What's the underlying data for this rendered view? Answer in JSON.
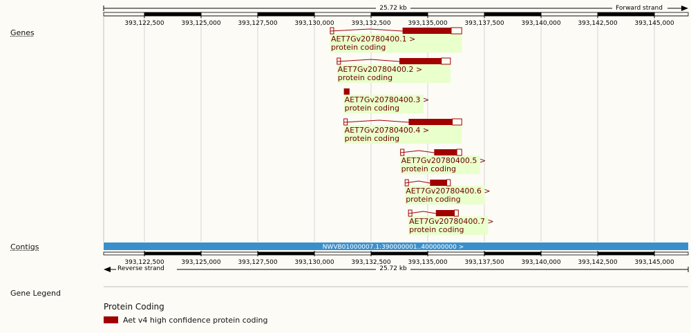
{
  "scale": {
    "length_label": "25.72 kb",
    "forward_strand": "Forward strand",
    "reverse_strand": "Reverse strand",
    "tick_positions": [
      393122500,
      393125000,
      393127500,
      393130000,
      393132500,
      393135000,
      393137500,
      393140000,
      393142500,
      393145000
    ],
    "ticks": [
      "393,122,500",
      "393,125,000",
      "393,127,500",
      "393,130,000",
      "393,132,500",
      "393,135,000",
      "393,137,500",
      "393,140,000",
      "393,142,500",
      "393,145,000"
    ]
  },
  "tracks": {
    "genes_label": "Genes",
    "contigs_label": "Contigs"
  },
  "contig": {
    "label": "NWVB01000007.1:390000001..400000000 >",
    "color": "#3a8fcb"
  },
  "genes": [
    {
      "name": "AET7Gv20780400.1 >",
      "biotype": "protein coding",
      "start": 393130700,
      "end": 393136500
    },
    {
      "name": "AET7Gv20780400.2 >",
      "biotype": "protein coding",
      "start": 393131000,
      "end": 393136000
    },
    {
      "name": "AET7Gv20780400.3 >",
      "biotype": "protein coding",
      "start": 393131300,
      "end": 393131550
    },
    {
      "name": "AET7Gv20780400.4 >",
      "biotype": "protein coding",
      "start": 393131300,
      "end": 393136500
    },
    {
      "name": "AET7Gv20780400.5 >",
      "biotype": "protein coding",
      "start": 393133800,
      "end": 393136500
    },
    {
      "name": "AET7Gv20780400.6 >",
      "biotype": "protein coding",
      "start": 393134000,
      "end": 393136000
    },
    {
      "name": "AET7Gv20780400.7 >",
      "biotype": "protein coding",
      "start": 393134150,
      "end": 393136350
    }
  ],
  "legend": {
    "title": "Gene Legend",
    "heading": "Protein Coding",
    "entry": "Aet v4 high confidence protein coding",
    "color": "#a00000"
  },
  "colors": {
    "gene": "#a00000",
    "label_bg": "#e9ffcc",
    "label_text": "#6b0000",
    "grid": "#d6d6d6"
  }
}
